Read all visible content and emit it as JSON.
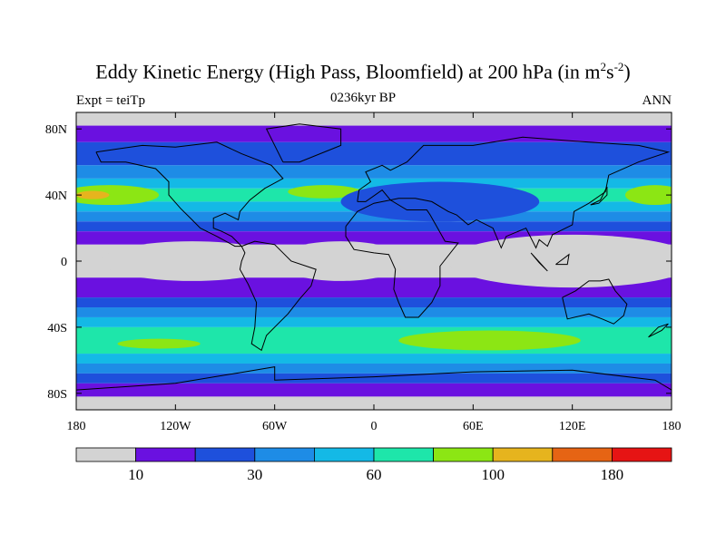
{
  "header": {
    "title_main": "Eddy Kinetic Energy (High Pass, Bloomfield) at 200 hPa (in m",
    "title_sup1": "2",
    "title_mid": "s",
    "title_sup2": "-2",
    "title_end": ")",
    "subtitle": "0236kyr BP",
    "left_label": "Expt = teiTp",
    "right_label": "ANN"
  },
  "colors": {
    "levels": [
      "#d3d3d3",
      "#6a11e0",
      "#1e50dc",
      "#1e8ce6",
      "#14b9e6",
      "#1ee6aa",
      "#8ce614",
      "#e6b41e",
      "#e66414",
      "#e61414"
    ],
    "coast": "#000000"
  },
  "chart_data": {
    "type": "heatmap",
    "x_ticks": [
      "180",
      "120W",
      "60W",
      "0",
      "60E",
      "120E",
      "180"
    ],
    "y_ticks": [
      "80N",
      "40N",
      "0",
      "40S",
      "80S"
    ],
    "colorbar_labels": [
      "10",
      "30",
      "60",
      "100",
      "180"
    ],
    "colorbar_bins": 10,
    "xlim_lon": [
      -180,
      180
    ],
    "ylim_lat": [
      -90,
      90
    ],
    "lat_bands": [
      {
        "lat_from": 90,
        "lat_to": 82,
        "level": 0
      },
      {
        "lat_from": 82,
        "lat_to": 72,
        "level": 1
      },
      {
        "lat_from": 72,
        "lat_to": 58,
        "level": 2
      },
      {
        "lat_from": 58,
        "lat_to": 50,
        "level": 3
      },
      {
        "lat_from": 50,
        "lat_to": 44,
        "level": 4
      },
      {
        "lat_from": 44,
        "lat_to": 36,
        "level": 5
      },
      {
        "lat_from": 36,
        "lat_to": 30,
        "level": 4
      },
      {
        "lat_from": 30,
        "lat_to": 24,
        "level": 3
      },
      {
        "lat_from": 24,
        "lat_to": 18,
        "level": 2
      },
      {
        "lat_from": 18,
        "lat_to": 10,
        "level": 1
      },
      {
        "lat_from": 10,
        "lat_to": -10,
        "level": 0
      },
      {
        "lat_from": -10,
        "lat_to": -22,
        "level": 1
      },
      {
        "lat_from": -22,
        "lat_to": -28,
        "level": 2
      },
      {
        "lat_from": -28,
        "lat_to": -34,
        "level": 3
      },
      {
        "lat_from": -34,
        "lat_to": -40,
        "level": 4
      },
      {
        "lat_from": -40,
        "lat_to": -56,
        "level": 5
      },
      {
        "lat_from": -56,
        "lat_to": -62,
        "level": 4
      },
      {
        "lat_from": -62,
        "lat_to": -68,
        "level": 3
      },
      {
        "lat_from": -68,
        "lat_to": -74,
        "level": 2
      },
      {
        "lat_from": -74,
        "lat_to": -82,
        "level": 1
      },
      {
        "lat_from": -82,
        "lat_to": -90,
        "level": 0
      }
    ],
    "features": [
      {
        "lon": -160,
        "lat": 40,
        "rx": 30,
        "ry": 6,
        "level": 6
      },
      {
        "lon": -170,
        "lat": 40,
        "rx": 10,
        "ry": 2.5,
        "level": 7
      },
      {
        "lon": 170,
        "lat": 40,
        "rx": 18,
        "ry": 6,
        "level": 6
      },
      {
        "lon": -30,
        "lat": 42,
        "rx": 22,
        "ry": 4,
        "level": 6
      },
      {
        "lon": 40,
        "lat": 36,
        "rx": 60,
        "ry": 12,
        "level": 2
      },
      {
        "lon": -130,
        "lat": -50,
        "rx": 25,
        "ry": 3,
        "level": 6
      },
      {
        "lon": 70,
        "lat": -48,
        "rx": 55,
        "ry": 6,
        "level": 6
      },
      {
        "lon": -110,
        "lat": 0,
        "rx": 55,
        "ry": 12,
        "level": 0
      },
      {
        "lon": -20,
        "lat": 0,
        "rx": 40,
        "ry": 12,
        "level": 0
      },
      {
        "lon": 120,
        "lat": 0,
        "rx": 75,
        "ry": 16,
        "level": 0
      }
    ]
  }
}
